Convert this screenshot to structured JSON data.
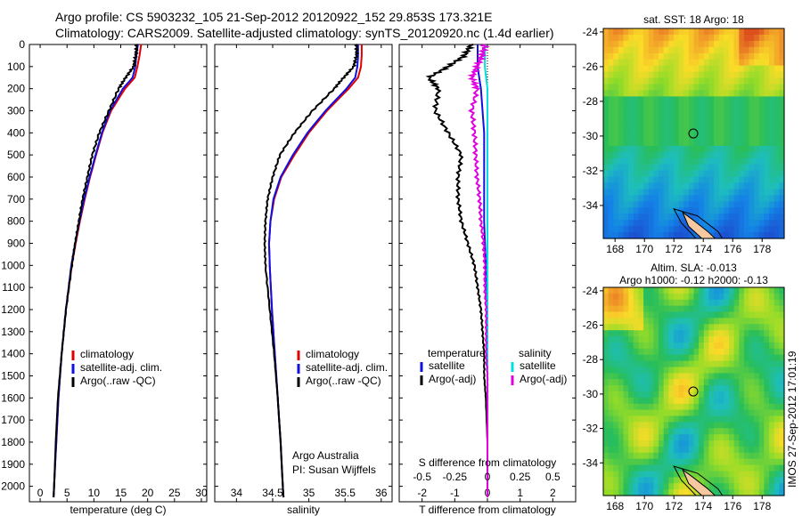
{
  "header": {
    "line1": "Argo profile: CS 5903232_105 21-Sep-2012 20120922_152 29.853S 173.321E",
    "line2": "Climatology: CARS2009. Satellite-adjusted climatology: synTS_20120920.nc (1.4d earlier)"
  },
  "depth_ticks": [
    "0",
    "100",
    "200",
    "300",
    "400",
    "500",
    "600",
    "700",
    "800",
    "900",
    "1000",
    "1100",
    "1200",
    "1300",
    "1400",
    "1500",
    "1600",
    "1700",
    "1800",
    "1900",
    "2000"
  ],
  "credit": {
    "line1": "Argo Australia",
    "line2": "PI: Susan Wijffels"
  },
  "stamp": "IMOS 27-Sep-2012 17:01:19",
  "colors": {
    "climatology": "#e00000",
    "satellite": "#1010e0",
    "argo": "#000000",
    "sat_sal": "#00e0e0",
    "argo_sal": "#e000e0"
  },
  "chart_data": [
    {
      "type": "line",
      "id": "temperature",
      "xlabel": "temperature (deg C)",
      "ylabel": "",
      "xlim": [
        -2,
        31
      ],
      "ylim": [
        2070,
        0
      ],
      "xticks": [
        "0",
        "5",
        "10",
        "15",
        "20",
        "25",
        "30"
      ],
      "legend": [
        "climatology",
        "satellite-adj. clim.",
        "Argo(..raw -QC)"
      ],
      "series": [
        {
          "name": "climatology",
          "color": "#e00000",
          "depth": [
            0,
            50,
            100,
            150,
            200,
            300,
            400,
            500,
            600,
            700,
            800,
            900,
            1000,
            1200,
            1400,
            1600,
            1800,
            2000,
            2050
          ],
          "values": [
            18.8,
            18.5,
            18.1,
            17.6,
            15.8,
            13.2,
            11.6,
            10.4,
            9.3,
            8.3,
            7.4,
            6.6,
            5.9,
            4.8,
            4.0,
            3.4,
            3.0,
            2.6,
            2.5
          ]
        },
        {
          "name": "satellite-adj. clim.",
          "color": "#1010e0",
          "depth": [
            0,
            50,
            100,
            150,
            200,
            300,
            400,
            500,
            600,
            700,
            800,
            900,
            1000,
            1200,
            1400,
            1600,
            1800,
            2000,
            2050
          ],
          "values": [
            18.2,
            17.9,
            17.7,
            17.2,
            15.4,
            13.0,
            11.5,
            10.3,
            9.2,
            8.2,
            7.3,
            6.5,
            5.8,
            4.8,
            4.0,
            3.4,
            3.0,
            2.6,
            2.5
          ]
        },
        {
          "name": "Argo(..raw -QC)",
          "color": "#000000",
          "depth": [
            0,
            50,
            100,
            150,
            200,
            300,
            400,
            500,
            600,
            700,
            800,
            900,
            1000,
            1200,
            1400,
            1600,
            1800,
            2000,
            2050
          ],
          "values": [
            18.0,
            17.8,
            17.4,
            15.9,
            14.6,
            12.8,
            11.0,
            9.7,
            8.8,
            7.9,
            7.2,
            6.5,
            5.9,
            4.8,
            4.0,
            3.3,
            2.9,
            2.6,
            2.5
          ]
        }
      ]
    },
    {
      "type": "line",
      "id": "salinity",
      "xlabel": "salinity",
      "ylabel": "",
      "xlim": [
        33.7,
        36.15
      ],
      "ylim": [
        2070,
        0
      ],
      "xticks": [
        "34",
        "34.5",
        "35",
        "35.5",
        "36"
      ],
      "legend": [
        "climatology",
        "satellite-adj. clim.",
        "Argo(..raw -QC)"
      ],
      "series": [
        {
          "name": "climatology",
          "color": "#e00000",
          "depth": [
            0,
            50,
            100,
            150,
            200,
            300,
            400,
            500,
            600,
            700,
            800,
            900,
            1000,
            1200,
            1400,
            1600,
            1800,
            2000,
            2050
          ],
          "values": [
            35.73,
            35.73,
            35.72,
            35.68,
            35.55,
            35.25,
            35.0,
            34.8,
            34.62,
            34.52,
            34.47,
            34.45,
            34.46,
            34.49,
            34.53,
            34.57,
            34.61,
            34.64,
            34.65
          ]
        },
        {
          "name": "satellite-adj. clim.",
          "color": "#1010e0",
          "depth": [
            0,
            50,
            100,
            150,
            200,
            300,
            400,
            500,
            600,
            700,
            800,
            900,
            1000,
            1200,
            1400,
            1600,
            1800,
            2000,
            2050
          ],
          "values": [
            35.68,
            35.68,
            35.67,
            35.64,
            35.52,
            35.23,
            34.98,
            34.78,
            34.61,
            34.51,
            34.47,
            34.45,
            34.46,
            34.49,
            34.53,
            34.57,
            34.61,
            34.64,
            34.65
          ]
        },
        {
          "name": "Argo(..raw -QC)",
          "color": "#000000",
          "depth": [
            0,
            50,
            100,
            150,
            200,
            300,
            400,
            500,
            600,
            700,
            800,
            900,
            1000,
            1200,
            1400,
            1600,
            1800,
            2000,
            2050
          ],
          "values": [
            35.66,
            35.66,
            35.62,
            35.48,
            35.35,
            35.05,
            34.8,
            34.6,
            34.5,
            34.43,
            34.4,
            34.39,
            34.4,
            34.46,
            34.52,
            34.57,
            34.61,
            34.64,
            34.65
          ]
        }
      ]
    },
    {
      "type": "line",
      "id": "difference",
      "xlabel": "T difference from climatology",
      "xlabel2": "S difference from climatology",
      "ylabel": "",
      "xlim": [
        -2.7,
        2.7
      ],
      "ylim": [
        2070,
        0
      ],
      "xticks": [
        "-2",
        "-1",
        "0",
        "1",
        "2"
      ],
      "xticks2": [
        "-0.5",
        "-0.25",
        "0",
        "0.25",
        "0.5"
      ],
      "legend_headers": [
        "temperature",
        "salinity"
      ],
      "legend": [
        "satellite",
        "Argo(-adj)",
        "satellite",
        "Argo(-adj)"
      ],
      "series": [
        {
          "name": "satellite",
          "quantity": "temperature",
          "color": "#1010e0",
          "depth": [
            0,
            100,
            200,
            400,
            600,
            800,
            1000,
            1200,
            1400,
            1600,
            1800,
            2000,
            2050
          ],
          "values": [
            -0.3,
            -0.3,
            -0.2,
            -0.1,
            -0.1,
            -0.1,
            -0.05,
            0,
            0,
            0,
            0,
            0,
            0
          ]
        },
        {
          "name": "Argo(-adj)",
          "quantity": "temperature",
          "color": "#000000",
          "depth": [
            0,
            50,
            100,
            150,
            200,
            300,
            400,
            500,
            600,
            700,
            800,
            900,
            1000,
            1100,
            1200,
            1300,
            1400,
            1500,
            1600,
            1800,
            2000,
            2050
          ],
          "values": [
            -0.5,
            -0.7,
            -1.2,
            -1.8,
            -1.5,
            -1.6,
            -1.2,
            -0.8,
            -0.9,
            -0.9,
            -0.8,
            -0.6,
            -0.4,
            -0.3,
            -0.2,
            -0.15,
            -0.1,
            -0.1,
            -0.05,
            0,
            0,
            0
          ]
        },
        {
          "name": "satellite",
          "quantity": "salinity",
          "color": "#00e0e0",
          "depth": [
            0,
            100,
            200,
            400,
            600,
            800,
            1000,
            1200,
            1400,
            1600,
            1800,
            2000,
            2050
          ],
          "values": [
            -0.02,
            -0.02,
            0,
            0,
            0,
            0,
            0,
            0,
            0,
            0,
            0,
            0,
            0
          ]
        },
        {
          "name": "Argo(-adj)",
          "quantity": "salinity",
          "color": "#e000e0",
          "depth": [
            0,
            50,
            100,
            150,
            200,
            300,
            400,
            500,
            600,
            700,
            800,
            900,
            1000,
            1100,
            1200,
            1300,
            1400,
            1500,
            1600,
            1800,
            2000,
            2050
          ],
          "values": [
            -0.02,
            -0.04,
            -0.08,
            -0.12,
            -0.08,
            -0.12,
            -0.1,
            -0.09,
            -0.08,
            -0.06,
            -0.05,
            -0.03,
            -0.02,
            -0.02,
            -0.01,
            -0.01,
            -0.01,
            0,
            0,
            0,
            0,
            0
          ]
        }
      ]
    },
    {
      "type": "heatmap",
      "id": "sst_map",
      "title": "sat. SST: 18 Argo: 18",
      "xticks": [
        "168",
        "170",
        "172",
        "174",
        "176",
        "178"
      ],
      "yticks": [
        "-24",
        "-26",
        "-28",
        "-30",
        "-32",
        "-34"
      ],
      "xlim": [
        167.2,
        179.5
      ],
      "ylim": [
        -35.9,
        -23.8
      ],
      "argo_position": [
        173.321,
        -29.853
      ],
      "field": "sst"
    },
    {
      "type": "heatmap",
      "id": "sla_map",
      "title": "Altim. SLA: -0.013",
      "subtitle": "Argo h1000: -0.12 h2000: -0.13",
      "xticks": [
        "168",
        "170",
        "172",
        "174",
        "176",
        "178"
      ],
      "yticks": [
        "-24",
        "-26",
        "-28",
        "-30",
        "-32",
        "-34"
      ],
      "xlim": [
        167.2,
        179.5
      ],
      "ylim": [
        -35.9,
        -23.8
      ],
      "argo_position": [
        173.321,
        -29.853
      ],
      "field": "sla"
    }
  ]
}
